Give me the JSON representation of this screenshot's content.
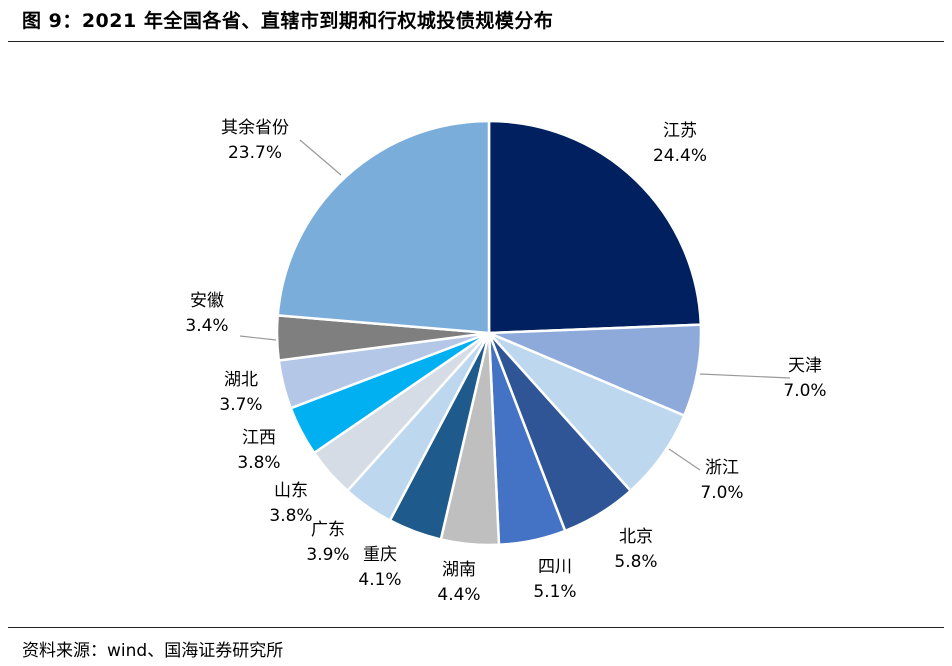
{
  "title": "图 9：2021 年全国各省、直辖市到期和行权城投债规模分布",
  "source": "资料来源：wind、国海证券研究所",
  "chart_data": {
    "type": "pie",
    "title": "",
    "slices": [
      {
        "label": "江苏",
        "value": 24.4,
        "value_label": "24.4%",
        "color": "#002060"
      },
      {
        "label": "天津",
        "value": 7.0,
        "value_label": "7.0%",
        "color": "#8EAADB"
      },
      {
        "label": "浙江",
        "value": 7.0,
        "value_label": "7.0%",
        "color": "#BDD7EE"
      },
      {
        "label": "北京",
        "value": 5.8,
        "value_label": "5.8%",
        "color": "#2F5597"
      },
      {
        "label": "四川",
        "value": 5.1,
        "value_label": "5.1%",
        "color": "#4472C4"
      },
      {
        "label": "湖南",
        "value": 4.4,
        "value_label": "4.4%",
        "color": "#BFBFBF"
      },
      {
        "label": "重庆",
        "value": 4.1,
        "value_label": "4.1%",
        "color": "#1F5A8C"
      },
      {
        "label": "广东",
        "value": 3.9,
        "value_label": "3.9%",
        "color": "#BDD7EE"
      },
      {
        "label": "山东",
        "value": 3.8,
        "value_label": "3.8%",
        "color": "#D6DCE5"
      },
      {
        "label": "江西",
        "value": 3.8,
        "value_label": "3.8%",
        "color": "#00B0F0"
      },
      {
        "label": "湖北",
        "value": 3.7,
        "value_label": "3.7%",
        "color": "#B4C7E7"
      },
      {
        "label": "安徽",
        "value": 3.4,
        "value_label": "3.4%",
        "color": "#7F7F7F"
      },
      {
        "label": "其余省份",
        "value": 23.7,
        "value_label": "23.7%",
        "color": "#7BADDB"
      }
    ]
  }
}
